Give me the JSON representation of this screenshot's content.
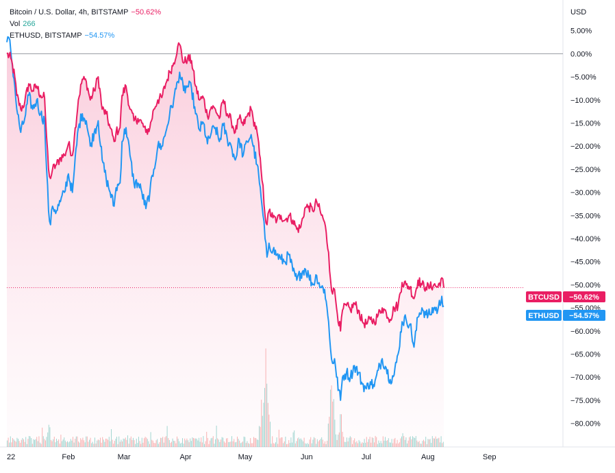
{
  "legend": {
    "btc_label": "Bitcoin / U.S. Dollar, 4h, BITSTAMP",
    "btc_value": "−50.62%",
    "vol_label": "Vol",
    "vol_value": "266",
    "eth_label": "ETHUSD, BITSTAMP",
    "eth_value": "−54.57%"
  },
  "tags": {
    "btc_symbol": "BTCUSD",
    "btc_value": "−50.62%",
    "eth_symbol": "ETHUSD",
    "eth_value": "−54.57%"
  },
  "colors": {
    "btc": "#e91e63",
    "eth": "#2196f3",
    "btc_fill": "#f8bbd0",
    "vol_up": "#26a69a",
    "vol_down": "#ef5350",
    "zero_line": "#9598a1"
  },
  "chart_data": {
    "type": "line",
    "currency_label": "USD",
    "y_unit": "%",
    "ylim": [
      -82,
      8
    ],
    "y_ticks": [
      "5.00%",
      "0.00%",
      "−5.00%",
      "−10.00%",
      "−15.00%",
      "−20.00%",
      "−25.00%",
      "−30.00%",
      "−35.00%",
      "−40.00%",
      "−45.00%",
      "−50.00%",
      "−55.00%",
      "−60.00%",
      "−65.00%",
      "−70.00%",
      "−75.00%",
      "−80.00%"
    ],
    "y_tick_values": [
      5,
      0,
      -5,
      -10,
      -15,
      -20,
      -25,
      -30,
      -35,
      -40,
      -45,
      -50,
      -55,
      -60,
      -65,
      -70,
      -75,
      -80
    ],
    "x_tick_labels": [
      "22",
      "Feb",
      "Mar",
      "Apr",
      "May",
      "Jun",
      "Jul",
      "Aug",
      "Sep"
    ],
    "x_tick_dates": [
      "2022-01-01",
      "2022-02-01",
      "2022-03-01",
      "2022-04-01",
      "2022-05-01",
      "2022-06-01",
      "2022-07-01",
      "2022-08-01",
      "2022-09-01"
    ],
    "xlim": [
      "2022-01-01",
      "2022-09-30"
    ],
    "series": [
      {
        "name": "BTCUSD",
        "points": [
          [
            "2022-01-01",
            0
          ],
          [
            "2022-01-03",
            -1
          ],
          [
            "2022-01-05",
            -5
          ],
          [
            "2022-01-06",
            -9
          ],
          [
            "2022-01-08",
            -12
          ],
          [
            "2022-01-10",
            -10.5
          ],
          [
            "2022-01-12",
            -6.5
          ],
          [
            "2022-01-14",
            -8
          ],
          [
            "2022-01-16",
            -7
          ],
          [
            "2022-01-18",
            -9
          ],
          [
            "2022-01-20",
            -9.5
          ],
          [
            "2022-01-21",
            -18
          ],
          [
            "2022-01-22",
            -25
          ],
          [
            "2022-01-23",
            -27
          ],
          [
            "2022-01-24",
            -25
          ],
          [
            "2022-01-26",
            -24
          ],
          [
            "2022-01-28",
            -22.5
          ],
          [
            "2022-01-30",
            -22
          ],
          [
            "2022-02-01",
            -19.5
          ],
          [
            "2022-02-03",
            -22
          ],
          [
            "2022-02-04",
            -18
          ],
          [
            "2022-02-06",
            -10
          ],
          [
            "2022-02-08",
            -5.5
          ],
          [
            "2022-02-10",
            -6
          ],
          [
            "2022-02-12",
            -10
          ],
          [
            "2022-02-14",
            -8
          ],
          [
            "2022-02-16",
            -5
          ],
          [
            "2022-02-18",
            -12
          ],
          [
            "2022-02-20",
            -13
          ],
          [
            "2022-02-22",
            -16
          ],
          [
            "2022-02-24",
            -19
          ],
          [
            "2022-02-25",
            -17
          ],
          [
            "2022-02-27",
            -16
          ],
          [
            "2022-02-28",
            -9
          ],
          [
            "2022-03-02",
            -7
          ],
          [
            "2022-03-04",
            -12
          ],
          [
            "2022-03-06",
            -14.5
          ],
          [
            "2022-03-08",
            -14
          ],
          [
            "2022-03-10",
            -15
          ],
          [
            "2022-03-12",
            -17
          ],
          [
            "2022-03-14",
            -16
          ],
          [
            "2022-03-16",
            -12
          ],
          [
            "2022-03-18",
            -10
          ],
          [
            "2022-03-20",
            -9.5
          ],
          [
            "2022-03-22",
            -6.5
          ],
          [
            "2022-03-24",
            -4
          ],
          [
            "2022-03-26",
            -2
          ],
          [
            "2022-03-28",
            1.5
          ],
          [
            "2022-03-29",
            2
          ],
          [
            "2022-03-31",
            -2
          ],
          [
            "2022-04-02",
            -1
          ],
          [
            "2022-04-04",
            -1.5
          ],
          [
            "2022-04-06",
            -7
          ],
          [
            "2022-04-08",
            -10
          ],
          [
            "2022-04-10",
            -9.5
          ],
          [
            "2022-04-12",
            -13.5
          ],
          [
            "2022-04-14",
            -11.5
          ],
          [
            "2022-04-16",
            -12
          ],
          [
            "2022-04-18",
            -14
          ],
          [
            "2022-04-20",
            -10
          ],
          [
            "2022-04-22",
            -13
          ],
          [
            "2022-04-24",
            -14.5
          ],
          [
            "2022-04-26",
            -17
          ],
          [
            "2022-04-28",
            -14
          ],
          [
            "2022-04-30",
            -15.5
          ],
          [
            "2022-05-02",
            -13.5
          ],
          [
            "2022-05-04",
            -12
          ],
          [
            "2022-05-05",
            -14
          ],
          [
            "2022-05-07",
            -17
          ],
          [
            "2022-05-09",
            -25
          ],
          [
            "2022-05-10",
            -28.5
          ],
          [
            "2022-05-11",
            -35
          ],
          [
            "2022-05-12",
            -37
          ],
          [
            "2022-05-13",
            -34
          ],
          [
            "2022-05-15",
            -35.5
          ],
          [
            "2022-05-17",
            -36
          ],
          [
            "2022-05-19",
            -35
          ],
          [
            "2022-05-21",
            -36
          ],
          [
            "2022-05-23",
            -35
          ],
          [
            "2022-05-25",
            -36
          ],
          [
            "2022-05-27",
            -38
          ],
          [
            "2022-05-29",
            -37.5
          ],
          [
            "2022-05-31",
            -33.5
          ],
          [
            "2022-06-02",
            -33
          ],
          [
            "2022-06-04",
            -34
          ],
          [
            "2022-06-06",
            -32
          ],
          [
            "2022-06-08",
            -34.5
          ],
          [
            "2022-06-10",
            -36.5
          ],
          [
            "2022-06-12",
            -43
          ],
          [
            "2022-06-13",
            -49
          ],
          [
            "2022-06-14",
            -52
          ],
          [
            "2022-06-15",
            -51
          ],
          [
            "2022-06-16",
            -55
          ],
          [
            "2022-06-18",
            -60
          ],
          [
            "2022-06-19",
            -55.5
          ],
          [
            "2022-06-21",
            -54.5
          ],
          [
            "2022-06-23",
            -55.5
          ],
          [
            "2022-06-25",
            -54
          ],
          [
            "2022-06-27",
            -55.5
          ],
          [
            "2022-06-29",
            -58
          ],
          [
            "2022-07-01",
            -58.5
          ],
          [
            "2022-07-03",
            -57.5
          ],
          [
            "2022-07-05",
            -58
          ],
          [
            "2022-07-07",
            -56.5
          ],
          [
            "2022-07-09",
            -55
          ],
          [
            "2022-07-11",
            -56
          ],
          [
            "2022-07-13",
            -57.5
          ],
          [
            "2022-07-15",
            -55
          ],
          [
            "2022-07-17",
            -54.5
          ],
          [
            "2022-07-19",
            -49.5
          ],
          [
            "2022-07-21",
            -50
          ],
          [
            "2022-07-23",
            -50.5
          ],
          [
            "2022-07-25",
            -53
          ],
          [
            "2022-07-27",
            -49
          ],
          [
            "2022-07-29",
            -50
          ],
          [
            "2022-07-31",
            -50.5
          ],
          [
            "2022-08-02",
            -50.5
          ],
          [
            "2022-08-04",
            -50
          ],
          [
            "2022-08-06",
            -50.5
          ],
          [
            "2022-08-08",
            -48.5
          ],
          [
            "2022-08-09",
            -50.62
          ]
        ]
      },
      {
        "name": "ETHUSD",
        "points": [
          [
            "2022-01-01",
            2.5
          ],
          [
            "2022-01-02",
            3.5
          ],
          [
            "2022-01-03",
            0.5
          ],
          [
            "2022-01-05",
            -7
          ],
          [
            "2022-01-06",
            -12
          ],
          [
            "2022-01-08",
            -17
          ],
          [
            "2022-01-10",
            -14
          ],
          [
            "2022-01-12",
            -9
          ],
          [
            "2022-01-14",
            -12
          ],
          [
            "2022-01-16",
            -10
          ],
          [
            "2022-01-18",
            -13
          ],
          [
            "2022-01-20",
            -14.5
          ],
          [
            "2022-01-21",
            -25
          ],
          [
            "2022-01-22",
            -34
          ],
          [
            "2022-01-23",
            -37
          ],
          [
            "2022-01-24",
            -33
          ],
          [
            "2022-01-26",
            -34
          ],
          [
            "2022-01-28",
            -32
          ],
          [
            "2022-01-30",
            -30
          ],
          [
            "2022-02-01",
            -26
          ],
          [
            "2022-02-03",
            -30
          ],
          [
            "2022-02-04",
            -25
          ],
          [
            "2022-02-06",
            -16
          ],
          [
            "2022-02-08",
            -13
          ],
          [
            "2022-02-10",
            -14.5
          ],
          [
            "2022-02-12",
            -20
          ],
          [
            "2022-02-14",
            -17
          ],
          [
            "2022-02-16",
            -14.5
          ],
          [
            "2022-02-18",
            -23
          ],
          [
            "2022-02-20",
            -27
          ],
          [
            "2022-02-22",
            -30
          ],
          [
            "2022-02-24",
            -33
          ],
          [
            "2022-02-25",
            -29
          ],
          [
            "2022-02-27",
            -28
          ],
          [
            "2022-02-28",
            -19
          ],
          [
            "2022-03-02",
            -16
          ],
          [
            "2022-03-04",
            -22
          ],
          [
            "2022-03-06",
            -28
          ],
          [
            "2022-03-08",
            -28
          ],
          [
            "2022-03-10",
            -30
          ],
          [
            "2022-03-12",
            -33.5
          ],
          [
            "2022-03-14",
            -30
          ],
          [
            "2022-03-16",
            -25
          ],
          [
            "2022-03-18",
            -20
          ],
          [
            "2022-03-20",
            -20
          ],
          [
            "2022-03-22",
            -17
          ],
          [
            "2022-03-24",
            -13
          ],
          [
            "2022-03-26",
            -10
          ],
          [
            "2022-03-28",
            -6
          ],
          [
            "2022-03-29",
            -4
          ],
          [
            "2022-03-31",
            -8
          ],
          [
            "2022-04-02",
            -7
          ],
          [
            "2022-04-04",
            -7.5
          ],
          [
            "2022-04-06",
            -13
          ],
          [
            "2022-04-08",
            -16.5
          ],
          [
            "2022-04-10",
            -15
          ],
          [
            "2022-04-12",
            -19.5
          ],
          [
            "2022-04-14",
            -17
          ],
          [
            "2022-04-16",
            -16
          ],
          [
            "2022-04-18",
            -19
          ],
          [
            "2022-04-20",
            -15.5
          ],
          [
            "2022-04-22",
            -18.5
          ],
          [
            "2022-04-24",
            -20
          ],
          [
            "2022-04-26",
            -23
          ],
          [
            "2022-04-28",
            -18.5
          ],
          [
            "2022-04-30",
            -22
          ],
          [
            "2022-05-02",
            -19
          ],
          [
            "2022-05-04",
            -17.5
          ],
          [
            "2022-05-05",
            -20
          ],
          [
            "2022-05-07",
            -24
          ],
          [
            "2022-05-09",
            -31
          ],
          [
            "2022-05-10",
            -35
          ],
          [
            "2022-05-11",
            -40
          ],
          [
            "2022-05-12",
            -44
          ],
          [
            "2022-05-13",
            -41
          ],
          [
            "2022-05-15",
            -42.5
          ],
          [
            "2022-05-17",
            -43.5
          ],
          [
            "2022-05-19",
            -44.5
          ],
          [
            "2022-05-21",
            -45
          ],
          [
            "2022-05-23",
            -43.5
          ],
          [
            "2022-05-25",
            -47
          ],
          [
            "2022-05-27",
            -49
          ],
          [
            "2022-05-29",
            -47.5
          ],
          [
            "2022-05-31",
            -46.5
          ],
          [
            "2022-06-02",
            -48
          ],
          [
            "2022-06-04",
            -50
          ],
          [
            "2022-06-06",
            -48
          ],
          [
            "2022-06-08",
            -50.5
          ],
          [
            "2022-06-10",
            -51
          ],
          [
            "2022-06-12",
            -58
          ],
          [
            "2022-06-13",
            -64
          ],
          [
            "2022-06-14",
            -67
          ],
          [
            "2022-06-15",
            -66
          ],
          [
            "2022-06-16",
            -70
          ],
          [
            "2022-06-18",
            -75
          ],
          [
            "2022-06-19",
            -70
          ],
          [
            "2022-06-21",
            -69
          ],
          [
            "2022-06-23",
            -70
          ],
          [
            "2022-06-25",
            -67.5
          ],
          [
            "2022-06-27",
            -69
          ],
          [
            "2022-06-29",
            -71.5
          ],
          [
            "2022-07-01",
            -72.5
          ],
          [
            "2022-07-03",
            -71
          ],
          [
            "2022-07-05",
            -72
          ],
          [
            "2022-07-07",
            -68.5
          ],
          [
            "2022-07-09",
            -66
          ],
          [
            "2022-07-11",
            -68
          ],
          [
            "2022-07-13",
            -70.5
          ],
          [
            "2022-07-15",
            -69.5
          ],
          [
            "2022-07-17",
            -65
          ],
          [
            "2022-07-19",
            -58
          ],
          [
            "2022-07-21",
            -57.5
          ],
          [
            "2022-07-23",
            -58.5
          ],
          [
            "2022-07-25",
            -63.5
          ],
          [
            "2022-07-27",
            -57
          ],
          [
            "2022-07-29",
            -55
          ],
          [
            "2022-07-31",
            -56.5
          ],
          [
            "2022-08-02",
            -56.5
          ],
          [
            "2022-08-04",
            -55
          ],
          [
            "2022-08-06",
            -55.5
          ],
          [
            "2022-08-08",
            -52.5
          ],
          [
            "2022-08-09",
            -54.57
          ]
        ]
      }
    ]
  }
}
